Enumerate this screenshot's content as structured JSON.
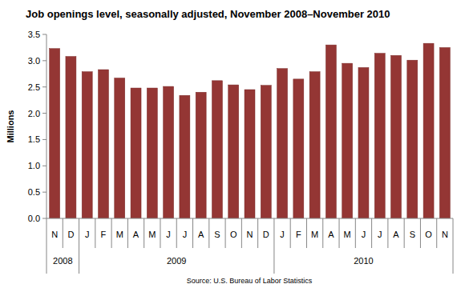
{
  "chart_data": {
    "type": "bar",
    "title": "Job openings level, seasonally adjusted, November 2008–November 2010",
    "y_label": "Millions",
    "source": "Source: U.S. Bureau of Labor Statistics",
    "categories": [
      "N",
      "D",
      "J",
      "F",
      "M",
      "A",
      "M",
      "J",
      "J",
      "A",
      "S",
      "O",
      "N",
      "D",
      "J",
      "F",
      "M",
      "A",
      "M",
      "J",
      "J",
      "A",
      "S",
      "O",
      "N"
    ],
    "values": [
      3.23,
      3.08,
      2.79,
      2.83,
      2.67,
      2.48,
      2.48,
      2.51,
      2.34,
      2.4,
      2.62,
      2.54,
      2.45,
      2.53,
      2.85,
      2.65,
      2.79,
      3.3,
      2.95,
      2.87,
      3.14,
      3.1,
      3.01,
      3.33,
      3.25
    ],
    "groups": [
      {
        "label": "2008",
        "count": 2
      },
      {
        "label": "2009",
        "count": 12
      },
      {
        "label": "2010",
        "count": 11
      }
    ],
    "color": "#943634",
    "ylim": [
      0,
      3.5
    ],
    "yticks": [
      {
        "value": 0,
        "label": "0.0"
      },
      0.5,
      {
        "value": 1,
        "label": "1.0"
      },
      1.5,
      {
        "value": 2,
        "label": "2.0"
      },
      2.5,
      {
        "value": 3,
        "label": "3.0"
      },
      3.5
    ],
    "grid": false
  }
}
